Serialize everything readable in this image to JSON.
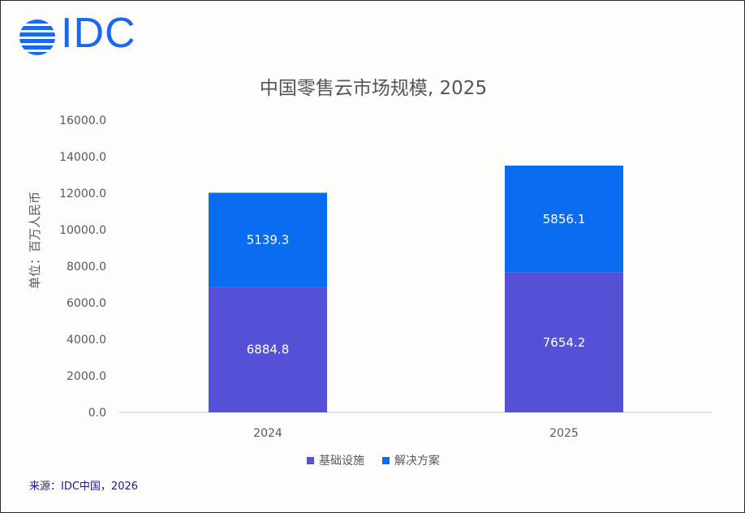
{
  "logo": {
    "text": "IDC"
  },
  "source": "来源：IDC中国，2026",
  "colors": {
    "infra": "#5451d6",
    "solution": "#0a6cf0",
    "logo": "#1a68ef"
  },
  "chart_data": {
    "type": "bar",
    "stacked": true,
    "title": "中国零售云市场规模, 2025",
    "ylabel": "单位：百万人民币",
    "xlabel": "",
    "categories": [
      "2024",
      "2025"
    ],
    "series": [
      {
        "name": "基础设施",
        "values": [
          6884.8,
          7654.2
        ],
        "labels": [
          "6884.8",
          "7654.2"
        ]
      },
      {
        "name": "解决方案",
        "values": [
          5139.3,
          5856.1
        ],
        "labels": [
          "5139.3",
          "5856.1"
        ]
      }
    ],
    "yticks": [
      "0.0",
      "2000.0",
      "4000.0",
      "6000.0",
      "8000.0",
      "10000.0",
      "12000.0",
      "14000.0",
      "16000.0"
    ],
    "ylim": [
      0,
      16000
    ],
    "grid": false,
    "legend": "bottom"
  }
}
